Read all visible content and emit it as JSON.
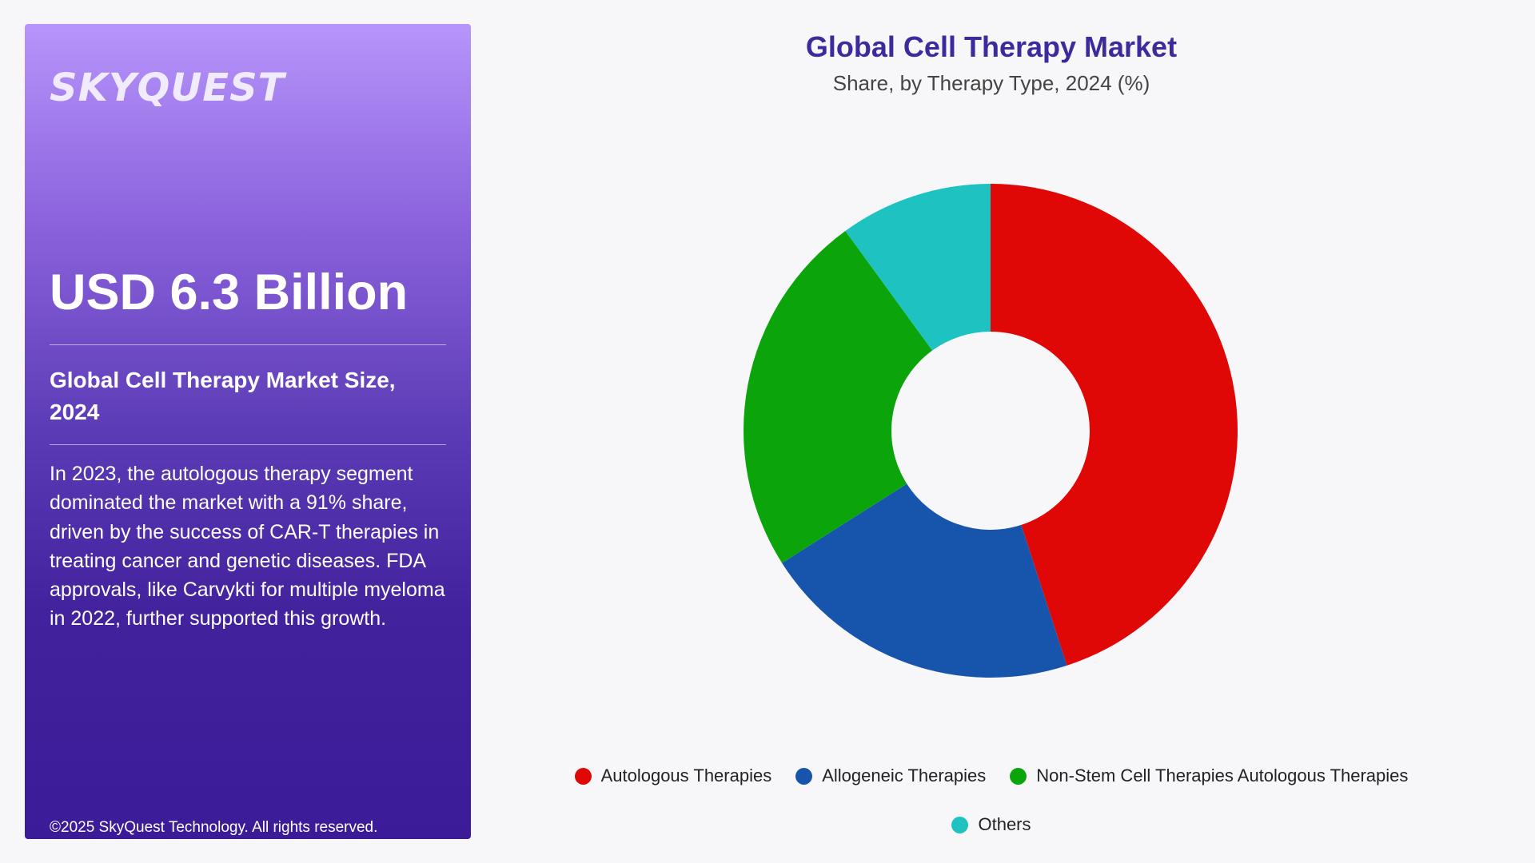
{
  "brand": {
    "logo_text": "SKYQUEST"
  },
  "summary": {
    "value": "USD 6.3 Billion",
    "label": "Global Cell Therapy Market Size, 2024",
    "description": "In 2023, the autologous therapy segment dominated the market with a 91% share, driven by the success of CAR-T therapies in treating cancer and genetic diseases. FDA approvals, like Carvykti for multiple myeloma in 2022, further supported this growth.",
    "copyright": "©2025 SkyQuest Technology. All rights reserved."
  },
  "chart_data": {
    "type": "pie",
    "title": "Global Cell Therapy Market",
    "subtitle": "Share, by Therapy Type, 2024 (%)",
    "categories": [
      "Autologous Therapies",
      "Allogeneic Therapies",
      "Non-Stem Cell Therapies Autologous Therapies",
      "Others"
    ],
    "values": [
      45,
      21,
      24,
      10
    ],
    "colors": [
      "#e00707",
      "#1755ad",
      "#0ba50b",
      "#1ec2c0"
    ],
    "donut": true,
    "legend_position": "bottom"
  }
}
